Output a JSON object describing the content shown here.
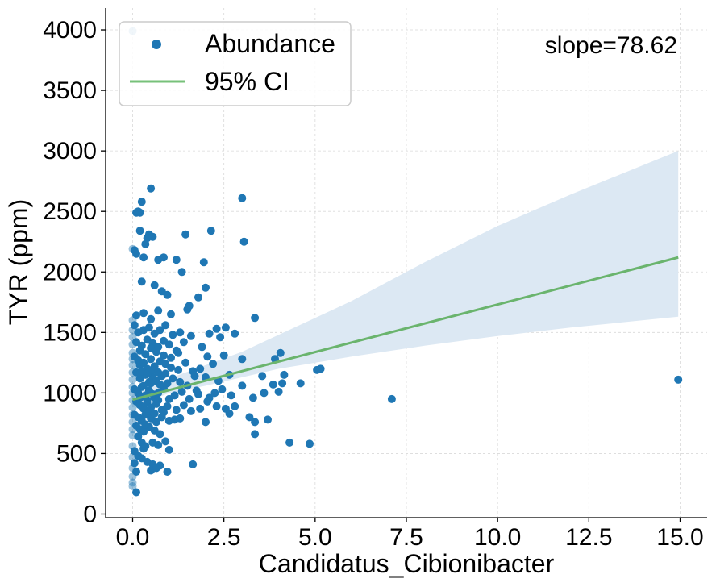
{
  "chart_data": {
    "type": "scatter",
    "title": "",
    "xlabel": "Candidatus_Cibionibacter",
    "ylabel": "TYR (ppm)",
    "xlim": [
      -0.74,
      15.74
    ],
    "ylim": [
      -30,
      4180
    ],
    "xticks": [
      0.0,
      2.5,
      5.0,
      7.5,
      10.0,
      12.5,
      15.0
    ],
    "xtick_labels": [
      "0.0",
      "2.5",
      "5.0",
      "7.5",
      "10.0",
      "12.5",
      "15.0"
    ],
    "yticks": [
      0,
      500,
      1000,
      1500,
      2000,
      2500,
      3000,
      3500,
      4000
    ],
    "ytick_labels": [
      "0",
      "500",
      "1000",
      "1500",
      "2000",
      "2500",
      "3000",
      "3500",
      "4000"
    ],
    "grid": true,
    "legend_position": "top-left",
    "legend": [
      {
        "label": "Abundance",
        "kind": "marker",
        "color": "#1f77b4"
      },
      {
        "label": "95% CI",
        "kind": "line",
        "color": "#77c17a"
      }
    ],
    "annotation": "slope=78.62",
    "colors": {
      "points": "#1f77b4",
      "fit": "#6ab46d",
      "band": "#dce8f3",
      "grid": "#d9d9d9"
    },
    "fit_line": {
      "x": [
        0.0,
        14.95
      ],
      "y": [
        945,
        2120
      ]
    },
    "ci_band": {
      "x": [
        0.0,
        1.0,
        2.0,
        3.0,
        4.0,
        6.0,
        8.0,
        10.0,
        12.0,
        14.95
      ],
      "upper": [
        1015,
        1120,
        1230,
        1340,
        1480,
        1760,
        2080,
        2380,
        2640,
        3000
      ],
      "lower": [
        880,
        1000,
        1060,
        1130,
        1200,
        1300,
        1390,
        1470,
        1540,
        1630
      ]
    },
    "series": [
      {
        "name": "Abundance",
        "points": [
          [
            0.0,
            3990
          ],
          [
            0.1,
            2490
          ],
          [
            0.2,
            2490
          ],
          [
            0.15,
            2500
          ],
          [
            0.25,
            2580
          ],
          [
            0.5,
            2690
          ],
          [
            3.0,
            2610
          ],
          [
            0.45,
            2310
          ],
          [
            0.35,
            2230
          ],
          [
            0.4,
            2280
          ],
          [
            0.2,
            2340
          ],
          [
            0.55,
            2290
          ],
          [
            1.45,
            2310
          ],
          [
            2.15,
            2340
          ],
          [
            3.05,
            2250
          ],
          [
            0.3,
            2120
          ],
          [
            0.7,
            2100
          ],
          [
            0.85,
            2120
          ],
          [
            1.2,
            2100
          ],
          [
            1.95,
            2080
          ],
          [
            0.05,
            2180
          ],
          [
            0.1,
            2150
          ],
          [
            0.25,
            1920
          ],
          [
            0.6,
            1890
          ],
          [
            0.8,
            1840
          ],
          [
            0.95,
            1810
          ],
          [
            1.35,
            2000
          ],
          [
            1.8,
            1790
          ],
          [
            2.0,
            1870
          ],
          [
            0.1,
            1640
          ],
          [
            0.3,
            1660
          ],
          [
            0.5,
            1610
          ],
          [
            0.7,
            1680
          ],
          [
            1.05,
            1650
          ],
          [
            1.5,
            1690
          ],
          [
            1.55,
            1720
          ],
          [
            3.35,
            1620
          ],
          [
            0.05,
            1560
          ],
          [
            0.15,
            1500
          ],
          [
            0.3,
            1520
          ],
          [
            0.45,
            1540
          ],
          [
            0.6,
            1490
          ],
          [
            0.75,
            1520
          ],
          [
            0.9,
            1560
          ],
          [
            1.1,
            1480
          ],
          [
            1.3,
            1500
          ],
          [
            1.6,
            1470
          ],
          [
            2.1,
            1490
          ],
          [
            2.3,
            1530
          ],
          [
            2.55,
            1540
          ],
          [
            2.8,
            1490
          ],
          [
            2.4,
            1460
          ],
          [
            0.1,
            1420
          ],
          [
            0.25,
            1390
          ],
          [
            0.4,
            1440
          ],
          [
            0.55,
            1410
          ],
          [
            0.7,
            1380
          ],
          [
            0.85,
            1430
          ],
          [
            1.0,
            1400
          ],
          [
            1.2,
            1350
          ],
          [
            1.4,
            1420
          ],
          [
            1.9,
            1380
          ],
          [
            2.05,
            1300
          ],
          [
            2.2,
            1240
          ],
          [
            2.5,
            1310
          ],
          [
            3.0,
            1280
          ],
          [
            3.9,
            1280
          ],
          [
            4.05,
            1330
          ],
          [
            0.05,
            1300
          ],
          [
            0.15,
            1270
          ],
          [
            0.2,
            1230
          ],
          [
            0.3,
            1250
          ],
          [
            0.4,
            1200
          ],
          [
            0.5,
            1280
          ],
          [
            0.6,
            1220
          ],
          [
            0.75,
            1260
          ],
          [
            0.9,
            1240
          ],
          [
            1.05,
            1210
          ],
          [
            1.25,
            1190
          ],
          [
            1.45,
            1250
          ],
          [
            1.65,
            1180
          ],
          [
            1.85,
            1200
          ],
          [
            2.0,
            1130
          ],
          [
            2.35,
            1100
          ],
          [
            2.65,
            1150
          ],
          [
            0.1,
            1170
          ],
          [
            0.2,
            1120
          ],
          [
            0.35,
            1150
          ],
          [
            0.45,
            1090
          ],
          [
            0.55,
            1130
          ],
          [
            0.65,
            1100
          ],
          [
            0.8,
            1140
          ],
          [
            0.95,
            1080
          ],
          [
            1.1,
            1120
          ],
          [
            1.3,
            1090
          ],
          [
            1.5,
            1060
          ],
          [
            1.7,
            1140
          ],
          [
            1.75,
            1020
          ],
          [
            3.55,
            1140
          ],
          [
            4.15,
            1150
          ],
          [
            4.1,
            1080
          ],
          [
            4.6,
            1080
          ],
          [
            5.05,
            1190
          ],
          [
            5.15,
            1200
          ],
          [
            14.95,
            1110
          ],
          [
            7.1,
            950
          ],
          [
            0.05,
            1030
          ],
          [
            0.15,
            1000
          ],
          [
            0.25,
            1050
          ],
          [
            0.35,
            980
          ],
          [
            0.45,
            1020
          ],
          [
            0.6,
            960
          ],
          [
            0.7,
            1000
          ],
          [
            0.85,
            1040
          ],
          [
            1.0,
            950
          ],
          [
            1.15,
            980
          ],
          [
            1.35,
            1010
          ],
          [
            1.55,
            950
          ],
          [
            1.8,
            990
          ],
          [
            2.1,
            960
          ],
          [
            2.25,
            1000
          ],
          [
            2.45,
            1030
          ],
          [
            2.7,
            980
          ],
          [
            3.0,
            1060
          ],
          [
            3.3,
            960
          ],
          [
            3.6,
            1000
          ],
          [
            3.85,
            1070
          ],
          [
            4.0,
            1010
          ],
          [
            0.1,
            930
          ],
          [
            0.2,
            900
          ],
          [
            0.3,
            870
          ],
          [
            0.4,
            920
          ],
          [
            0.5,
            880
          ],
          [
            0.65,
            910
          ],
          [
            0.8,
            860
          ],
          [
            0.95,
            890
          ],
          [
            1.2,
            860
          ],
          [
            1.4,
            900
          ],
          [
            1.6,
            850
          ],
          [
            1.85,
            870
          ],
          [
            2.05,
            930
          ],
          [
            2.3,
            890
          ],
          [
            2.55,
            870
          ],
          [
            2.8,
            890
          ],
          [
            0.05,
            820
          ],
          [
            0.15,
            800
          ],
          [
            0.25,
            770
          ],
          [
            0.35,
            820
          ],
          [
            0.5,
            790
          ],
          [
            0.65,
            760
          ],
          [
            0.8,
            800
          ],
          [
            1.0,
            770
          ],
          [
            1.15,
            780
          ],
          [
            1.3,
            790
          ],
          [
            2.0,
            760
          ],
          [
            2.65,
            830
          ],
          [
            3.2,
            800
          ],
          [
            3.35,
            760
          ],
          [
            3.7,
            780
          ],
          [
            0.1,
            730
          ],
          [
            0.2,
            700
          ],
          [
            0.3,
            680
          ],
          [
            0.45,
            720
          ],
          [
            0.6,
            690
          ],
          [
            0.75,
            660
          ],
          [
            0.9,
            600
          ],
          [
            1.0,
            530
          ],
          [
            0.15,
            640
          ],
          [
            0.25,
            590
          ],
          [
            0.35,
            560
          ],
          [
            0.55,
            590
          ],
          [
            0.7,
            570
          ],
          [
            3.35,
            660
          ],
          [
            4.3,
            590
          ],
          [
            4.85,
            580
          ],
          [
            0.05,
            520
          ],
          [
            0.15,
            480
          ],
          [
            0.25,
            460
          ],
          [
            0.4,
            430
          ],
          [
            0.55,
            410
          ],
          [
            0.75,
            400
          ],
          [
            0.95,
            350
          ],
          [
            1.65,
            410
          ],
          [
            0.3,
            540
          ],
          [
            0.5,
            360
          ],
          [
            0.65,
            380
          ],
          [
            0.1,
            350
          ],
          [
            0.05,
            420
          ],
          [
            0.0,
            380
          ],
          [
            0.0,
            310
          ],
          [
            0.0,
            260
          ],
          [
            0.0,
            230
          ],
          [
            0.1,
            180
          ],
          [
            0.0,
            470
          ],
          [
            0.0,
            560
          ],
          [
            0.0,
            650
          ],
          [
            0.0,
            700
          ],
          [
            0.0,
            760
          ],
          [
            0.0,
            820
          ],
          [
            0.0,
            880
          ],
          [
            0.0,
            940
          ],
          [
            0.0,
            1000
          ],
          [
            0.0,
            1050
          ],
          [
            0.0,
            1110
          ],
          [
            0.0,
            1170
          ],
          [
            0.0,
            1230
          ],
          [
            0.0,
            1280
          ],
          [
            0.0,
            1330
          ],
          [
            0.0,
            1400
          ],
          [
            0.0,
            1460
          ],
          [
            0.0,
            1520
          ],
          [
            0.0,
            1600
          ],
          [
            0.0,
            2190
          ],
          [
            0.2,
            1350
          ],
          [
            0.35,
            1320
          ],
          [
            0.5,
            1370
          ],
          [
            0.65,
            1340
          ],
          [
            0.85,
            1310
          ],
          [
            1.05,
            1290
          ],
          [
            1.25,
            1330
          ],
          [
            0.25,
            1180
          ],
          [
            0.4,
            1160
          ],
          [
            0.55,
            1190
          ],
          [
            0.7,
            1170
          ],
          [
            0.9,
            1160
          ],
          [
            0.3,
            1060
          ],
          [
            0.5,
            1080
          ],
          [
            0.75,
            1070
          ],
          [
            0.2,
            960
          ],
          [
            0.4,
            940
          ],
          [
            0.55,
            990
          ],
          [
            0.7,
            940
          ],
          [
            0.45,
            850
          ],
          [
            0.6,
            830
          ],
          [
            0.85,
            840
          ],
          [
            0.35,
            740
          ]
        ]
      }
    ]
  }
}
